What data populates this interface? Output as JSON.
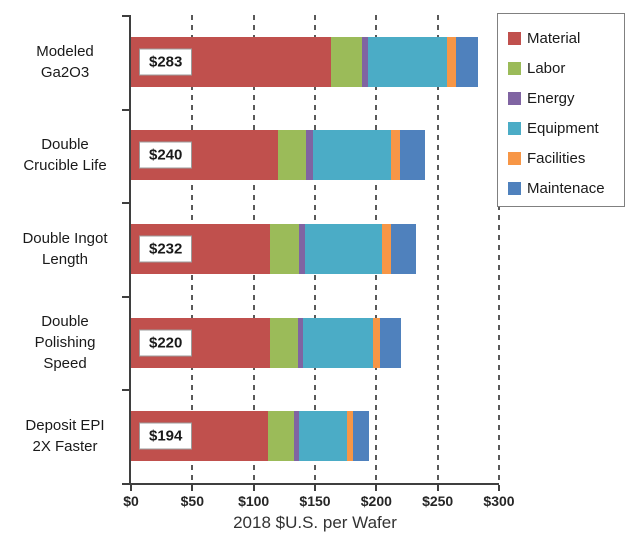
{
  "chart_data": {
    "type": "bar",
    "orientation": "horizontal-stacked",
    "title": "",
    "xlabel": "2018 $U.S. per Wafer",
    "ylabel": "",
    "xlim": [
      0,
      300
    ],
    "xticks": [
      0,
      50,
      100,
      150,
      200,
      250,
      300
    ],
    "xtick_labels": [
      "$0",
      "$50",
      "$100",
      "$150",
      "$200",
      "$250",
      "$300"
    ],
    "grid": "dashed-vertical",
    "legend_position": "top-right",
    "categories": [
      "Modeled Ga2O3",
      "Double Crucible Life",
      "Double Ingot Length",
      "Double Polishing Speed",
      "Deposit EPI 2X Faster"
    ],
    "category_label_lines": [
      [
        "Modeled",
        "Ga2O3"
      ],
      [
        "Double",
        "Crucible Life"
      ],
      [
        "Double Ingot",
        "Length"
      ],
      [
        "Double",
        "Polishing",
        "Speed"
      ],
      [
        "Deposit EPI",
        "2X Faster"
      ]
    ],
    "totals": [
      283,
      240,
      232,
      220,
      194
    ],
    "total_labels": [
      "$283",
      "$240",
      "$232",
      "$220",
      "$194"
    ],
    "series": [
      {
        "name": "Material",
        "color": "#C0504D",
        "values": [
          163,
          120,
          113,
          113,
          112
        ]
      },
      {
        "name": "Labor",
        "color": "#9BBB59",
        "values": [
          25,
          23,
          24,
          23,
          21
        ]
      },
      {
        "name": "Energy",
        "color": "#8064A2",
        "values": [
          5,
          5,
          5,
          4,
          4
        ]
      },
      {
        "name": "Equipment",
        "color": "#4BACC6",
        "values": [
          65,
          64,
          63,
          57,
          39
        ]
      },
      {
        "name": "Facilities",
        "color": "#F79646",
        "values": [
          7,
          7,
          7,
          6,
          5
        ]
      },
      {
        "name": "Maintenace",
        "color": "#4F81BD",
        "values": [
          18,
          21,
          20,
          17,
          13
        ]
      }
    ]
  }
}
